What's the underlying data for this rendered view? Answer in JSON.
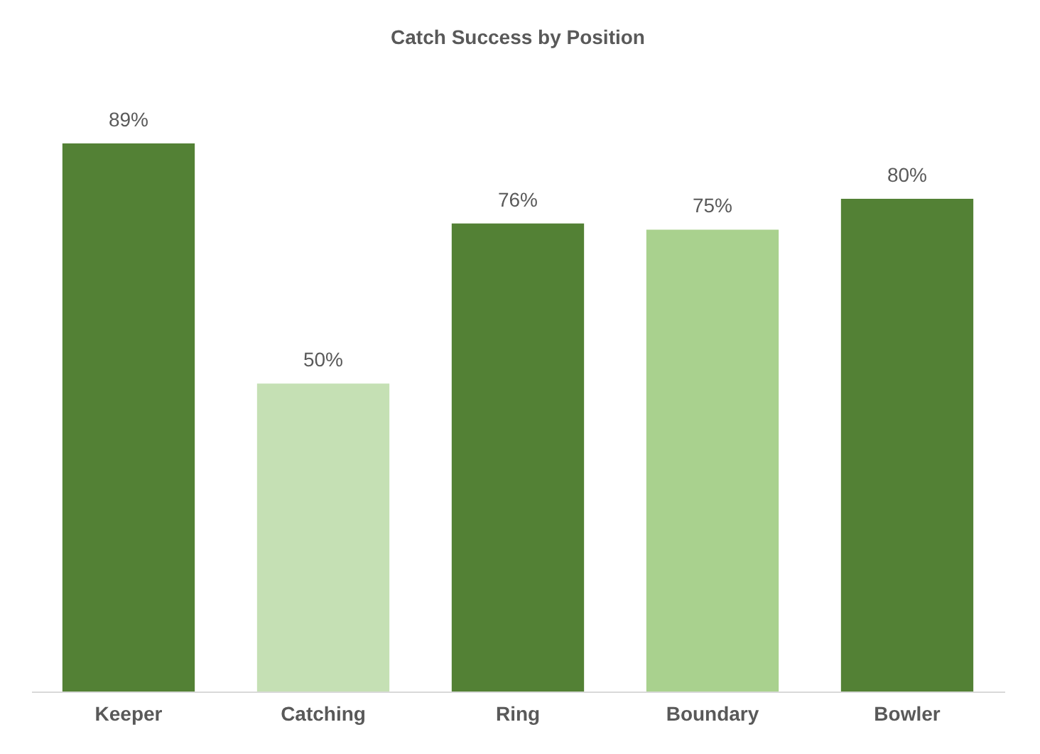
{
  "chart_data": {
    "type": "bar",
    "title": "Catch Success by Position",
    "categories": [
      "Keeper",
      "Catching",
      "Ring",
      "Boundary",
      "Bowler"
    ],
    "values": [
      89,
      50,
      76,
      75,
      80
    ],
    "colors": [
      "#538135",
      "#c5e0b4",
      "#538135",
      "#a9d18e",
      "#538135"
    ],
    "value_labels": [
      "89%",
      "50%",
      "76%",
      "75%",
      "80%"
    ],
    "grid": false,
    "legend": false
  }
}
